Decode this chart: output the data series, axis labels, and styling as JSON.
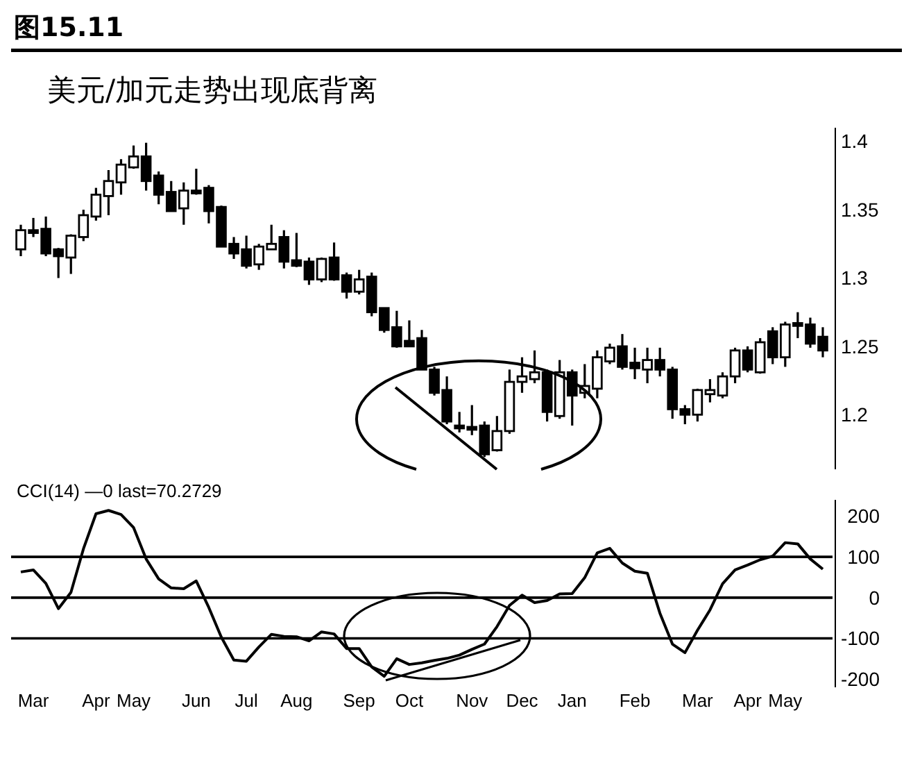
{
  "chart_data": [
    {
      "type": "candlestick",
      "title": "图15.11",
      "subtitle": "美元/加元走势出现底背离",
      "tick_labels": "y",
      "ylim": [
        1.16,
        1.41
      ],
      "yticks": [
        1.2,
        1.25,
        1.3,
        1.35,
        1.4
      ],
      "categories": [
        null,
        null,
        null,
        null,
        null,
        null,
        null,
        null,
        null,
        null,
        null,
        null,
        null,
        null,
        null,
        null,
        null,
        null,
        null,
        null,
        null,
        null,
        null,
        null,
        null,
        null,
        null,
        null,
        null,
        null,
        null,
        null,
        null,
        null,
        null,
        null,
        null,
        null,
        null,
        null,
        null,
        null,
        null,
        null,
        null,
        null,
        null,
        null,
        null,
        null,
        null,
        null,
        null,
        null,
        null,
        null,
        null,
        null,
        null,
        null,
        null,
        null,
        null,
        null,
        null
      ],
      "ohlc": [
        [
          1.321,
          1.339,
          1.316,
          1.335
        ],
        [
          1.335,
          1.344,
          1.33,
          1.333
        ],
        [
          1.336,
          1.345,
          1.316,
          1.318
        ],
        [
          1.321,
          1.322,
          1.3,
          1.316
        ],
        [
          1.315,
          1.332,
          1.303,
          1.331
        ],
        [
          1.33,
          1.35,
          1.327,
          1.346
        ],
        [
          1.345,
          1.366,
          1.342,
          1.361
        ],
        [
          1.36,
          1.379,
          1.346,
          1.371
        ],
        [
          1.37,
          1.387,
          1.361,
          1.383
        ],
        [
          1.381,
          1.397,
          1.38,
          1.389
        ],
        [
          1.389,
          1.399,
          1.364,
          1.371
        ],
        [
          1.375,
          1.378,
          1.354,
          1.361
        ],
        [
          1.363,
          1.371,
          1.349,
          1.349
        ],
        [
          1.351,
          1.37,
          1.339,
          1.364
        ],
        [
          1.364,
          1.38,
          1.361,
          1.362
        ],
        [
          1.366,
          1.368,
          1.34,
          1.349
        ],
        [
          1.352,
          1.353,
          1.323,
          1.323
        ],
        [
          1.325,
          1.33,
          1.314,
          1.318
        ],
        [
          1.321,
          1.331,
          1.307,
          1.309
        ],
        [
          1.31,
          1.325,
          1.306,
          1.323
        ],
        [
          1.321,
          1.339,
          1.321,
          1.325
        ],
        [
          1.33,
          1.335,
          1.307,
          1.312
        ],
        [
          1.313,
          1.333,
          1.308,
          1.309
        ],
        [
          1.312,
          1.315,
          1.295,
          1.299
        ],
        [
          1.299,
          1.315,
          1.297,
          1.314
        ],
        [
          1.315,
          1.326,
          1.298,
          1.299
        ],
        [
          1.302,
          1.304,
          1.285,
          1.29
        ],
        [
          1.29,
          1.306,
          1.288,
          1.299
        ],
        [
          1.301,
          1.304,
          1.272,
          1.275
        ],
        [
          1.278,
          1.278,
          1.26,
          1.262
        ],
        [
          1.264,
          1.276,
          1.249,
          1.25
        ],
        [
          1.254,
          1.269,
          1.25,
          1.25
        ],
        [
          1.256,
          1.262,
          1.233,
          1.233
        ],
        [
          1.233,
          1.235,
          1.214,
          1.216
        ],
        [
          1.218,
          1.228,
          1.193,
          1.195
        ],
        [
          1.192,
          1.202,
          1.187,
          1.19
        ],
        [
          1.191,
          1.207,
          1.185,
          1.189
        ],
        [
          1.192,
          1.195,
          1.169,
          1.171
        ],
        [
          1.174,
          1.199,
          1.173,
          1.188
        ],
        [
          1.188,
          1.233,
          1.186,
          1.224
        ],
        [
          1.224,
          1.242,
          1.216,
          1.228
        ],
        [
          1.226,
          1.247,
          1.223,
          1.231
        ],
        [
          1.231,
          1.233,
          1.195,
          1.202
        ],
        [
          1.199,
          1.24,
          1.197,
          1.231
        ],
        [
          1.231,
          1.233,
          1.192,
          1.214
        ],
        [
          1.216,
          1.237,
          1.212,
          1.221
        ],
        [
          1.219,
          1.247,
          1.212,
          1.242
        ],
        [
          1.239,
          1.252,
          1.237,
          1.249
        ],
        [
          1.25,
          1.259,
          1.233,
          1.235
        ],
        [
          1.238,
          1.249,
          1.226,
          1.234
        ],
        [
          1.233,
          1.249,
          1.223,
          1.24
        ],
        [
          1.24,
          1.249,
          1.228,
          1.233
        ],
        [
          1.233,
          1.235,
          1.197,
          1.204
        ],
        [
          1.204,
          1.207,
          1.193,
          1.2
        ],
        [
          1.2,
          1.219,
          1.195,
          1.218
        ],
        [
          1.215,
          1.226,
          1.209,
          1.218
        ],
        [
          1.214,
          1.231,
          1.212,
          1.228
        ],
        [
          1.228,
          1.249,
          1.223,
          1.247
        ],
        [
          1.247,
          1.25,
          1.231,
          1.233
        ],
        [
          1.231,
          1.256,
          1.23,
          1.253
        ],
        [
          1.261,
          1.264,
          1.237,
          1.242
        ],
        [
          1.242,
          1.268,
          1.235,
          1.266
        ],
        [
          1.267,
          1.275,
          1.256,
          1.265
        ],
        [
          1.266,
          1.271,
          1.249,
          1.252
        ],
        [
          1.257,
          1.264,
          1.242,
          1.247
        ]
      ]
    },
    {
      "type": "line",
      "title": "CCI(14) —0 last=70.2729",
      "ylim": [
        -220,
        240
      ],
      "yticks": [
        200,
        100,
        0,
        -100,
        -200
      ],
      "categories": [
        null,
        "Mar",
        null,
        null,
        null,
        null,
        "Apr",
        null,
        null,
        "May",
        null,
        null,
        null,
        null,
        "Jun",
        null,
        null,
        null,
        "Jul",
        null,
        null,
        null,
        "Aug",
        null,
        null,
        null,
        null,
        "Sep",
        null,
        null,
        null,
        "Oct",
        null,
        null,
        null,
        null,
        "Nov",
        null,
        null,
        null,
        "Dec",
        null,
        null,
        null,
        "Jan",
        null,
        null,
        null,
        null,
        "Feb",
        null,
        null,
        null,
        null,
        "Mar",
        null,
        null,
        null,
        "Apr",
        null,
        null,
        "May",
        null,
        null,
        null
      ],
      "ref_lines": [
        {
          "axis": "y",
          "value": 100,
          "color": "#000000"
        },
        {
          "axis": "y",
          "value": 0,
          "color": "#000000"
        },
        {
          "axis": "y",
          "value": -100,
          "color": "#000000"
        }
      ],
      "series": [
        {
          "color": "#000000",
          "values": [
            63,
            68,
            35,
            -27,
            13,
            120,
            206,
            214,
            204,
            172,
            95,
            46,
            24,
            22,
            41,
            -24,
            -97,
            -153,
            -156,
            -121,
            -90,
            -95,
            -96,
            -106,
            -84,
            -89,
            -125,
            -125,
            -170,
            -193,
            -150,
            -164,
            -160,
            -154,
            -149,
            -141,
            -127,
            -114,
            -71,
            -19,
            6,
            -12,
            -7,
            9,
            10,
            49,
            110,
            121,
            85,
            65,
            60,
            -38,
            -114,
            -135,
            -80,
            -30,
            34,
            68,
            80,
            93,
            102,
            135,
            132,
            95,
            70
          ]
        }
      ]
    }
  ]
}
